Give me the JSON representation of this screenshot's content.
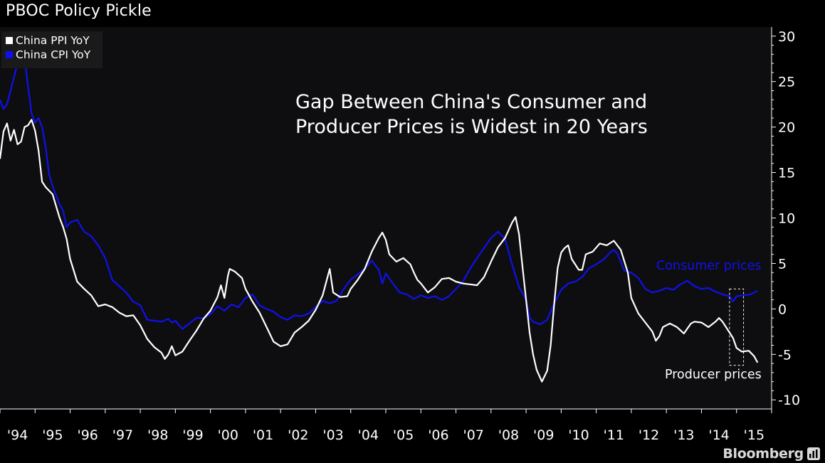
{
  "title": "PBOC Policy Pickle",
  "brand": "Bloomberg",
  "colors": {
    "background": "#000000",
    "plot_background": "#0e0e10",
    "ppi": "#ffffff",
    "cpi": "#1010ee",
    "axis": "#ffffff",
    "brand": "#d9d9d9"
  },
  "chart_data": {
    "type": "line",
    "headline": [
      "Gap Between China's Consumer and",
      "Producer Prices is Widest in 20 Years"
    ],
    "ylim": [
      -11,
      31
    ],
    "yticks": [
      30,
      25,
      20,
      15,
      10,
      5,
      0,
      -5,
      -10
    ],
    "ytick_labels": [
      "30",
      "25",
      "20",
      "15",
      "10",
      "5",
      "0",
      "-5",
      "-10"
    ],
    "xlim": [
      1994.0,
      2016.0
    ],
    "xtick_labels": [
      "'94",
      "'95",
      "'96",
      "'97",
      "'98",
      "'99",
      "'00",
      "'01",
      "'02",
      "'03",
      "'04",
      "'05",
      "'06",
      "'07",
      "'08",
      "'09",
      "'10",
      "'11",
      "'12",
      "'13",
      "'14",
      "'15"
    ],
    "grid": false,
    "legend_position": "top-left",
    "legend": [
      {
        "label": "China PPI YoY",
        "color": "#ffffff"
      },
      {
        "label": "China CPI YoY",
        "color": "#1010ee"
      }
    ],
    "annotations": [
      {
        "text": "Consumer prices",
        "color": "#1010ee",
        "x": 2014.5,
        "y": 4.5
      },
      {
        "text": "Producer prices",
        "color": "#ffffff",
        "x": 2014.1,
        "y": -8.2
      }
    ],
    "highlight_box": {
      "x": [
        2014.8,
        2015.2
      ],
      "y": [
        -6.2,
        2.2
      ]
    },
    "series": [
      {
        "name": "China PPI YoY",
        "color": "#ffffff",
        "points": [
          [
            1994.0,
            16.5
          ],
          [
            1994.1,
            19.5
          ],
          [
            1994.2,
            20.4
          ],
          [
            1994.3,
            18.5
          ],
          [
            1994.4,
            19.7
          ],
          [
            1994.5,
            18.1
          ],
          [
            1994.6,
            18.4
          ],
          [
            1994.7,
            20.0
          ],
          [
            1994.8,
            20.2
          ],
          [
            1994.9,
            20.8
          ],
          [
            1995.0,
            19.6
          ],
          [
            1995.1,
            17.4
          ],
          [
            1995.2,
            14.0
          ],
          [
            1995.3,
            13.4
          ],
          [
            1995.5,
            12.6
          ],
          [
            1995.7,
            10.0
          ],
          [
            1995.8,
            9.0
          ],
          [
            1995.9,
            7.7
          ],
          [
            1996.0,
            5.5
          ],
          [
            1996.2,
            3.0
          ],
          [
            1996.4,
            2.2
          ],
          [
            1996.6,
            1.5
          ],
          [
            1996.8,
            0.3
          ],
          [
            1997.0,
            0.5
          ],
          [
            1997.2,
            0.2
          ],
          [
            1997.4,
            -0.4
          ],
          [
            1997.6,
            -0.8
          ],
          [
            1997.8,
            -0.7
          ],
          [
            1998.0,
            -1.8
          ],
          [
            1998.2,
            -3.3
          ],
          [
            1998.4,
            -4.2
          ],
          [
            1998.6,
            -4.8
          ],
          [
            1998.7,
            -5.5
          ],
          [
            1998.8,
            -5.0
          ],
          [
            1998.9,
            -4.1
          ],
          [
            1999.0,
            -5.1
          ],
          [
            1999.2,
            -4.7
          ],
          [
            1999.4,
            -3.5
          ],
          [
            1999.6,
            -2.4
          ],
          [
            1999.8,
            -1.1
          ],
          [
            2000.0,
            -0.2
          ],
          [
            2000.2,
            1.3
          ],
          [
            2000.3,
            2.6
          ],
          [
            2000.4,
            1.2
          ],
          [
            2000.5,
            3.7
          ],
          [
            2000.55,
            4.4
          ],
          [
            2000.7,
            4.1
          ],
          [
            2000.9,
            3.4
          ],
          [
            2001.0,
            2.2
          ],
          [
            2001.2,
            0.8
          ],
          [
            2001.4,
            -0.4
          ],
          [
            2001.6,
            -2.0
          ],
          [
            2001.8,
            -3.6
          ],
          [
            2002.0,
            -4.1
          ],
          [
            2002.2,
            -3.9
          ],
          [
            2002.4,
            -2.6
          ],
          [
            2002.6,
            -2.0
          ],
          [
            2002.8,
            -1.3
          ],
          [
            2003.0,
            -0.1
          ],
          [
            2003.2,
            1.5
          ],
          [
            2003.4,
            4.4
          ],
          [
            2003.5,
            1.8
          ],
          [
            2003.7,
            1.3
          ],
          [
            2003.9,
            1.4
          ],
          [
            2004.0,
            2.2
          ],
          [
            2004.2,
            3.2
          ],
          [
            2004.4,
            4.4
          ],
          [
            2004.6,
            6.3
          ],
          [
            2004.8,
            7.8
          ],
          [
            2004.9,
            8.4
          ],
          [
            2005.0,
            7.6
          ],
          [
            2005.1,
            6.0
          ],
          [
            2005.3,
            5.2
          ],
          [
            2005.5,
            5.6
          ],
          [
            2005.7,
            4.9
          ],
          [
            2005.8,
            4.0
          ],
          [
            2005.9,
            3.2
          ],
          [
            2006.0,
            2.8
          ],
          [
            2006.2,
            1.8
          ],
          [
            2006.4,
            2.4
          ],
          [
            2006.6,
            3.3
          ],
          [
            2006.8,
            3.4
          ],
          [
            2007.0,
            3.0
          ],
          [
            2007.2,
            2.8
          ],
          [
            2007.4,
            2.7
          ],
          [
            2007.6,
            2.6
          ],
          [
            2007.8,
            3.5
          ],
          [
            2008.0,
            5.2
          ],
          [
            2008.2,
            6.8
          ],
          [
            2008.4,
            7.8
          ],
          [
            2008.6,
            9.5
          ],
          [
            2008.7,
            10.1
          ],
          [
            2008.8,
            8.2
          ],
          [
            2008.9,
            4.5
          ],
          [
            2009.0,
            1.0
          ],
          [
            2009.1,
            -2.6
          ],
          [
            2009.2,
            -5.0
          ],
          [
            2009.3,
            -6.7
          ],
          [
            2009.45,
            -8.0
          ],
          [
            2009.6,
            -6.8
          ],
          [
            2009.7,
            -4.0
          ],
          [
            2009.8,
            0.5
          ],
          [
            2009.9,
            4.5
          ],
          [
            2010.0,
            6.2
          ],
          [
            2010.1,
            6.7
          ],
          [
            2010.2,
            7.0
          ],
          [
            2010.3,
            5.5
          ],
          [
            2010.5,
            4.3
          ],
          [
            2010.6,
            4.3
          ],
          [
            2010.7,
            6.0
          ],
          [
            2010.9,
            6.3
          ],
          [
            2011.1,
            7.2
          ],
          [
            2011.3,
            7.0
          ],
          [
            2011.5,
            7.5
          ],
          [
            2011.7,
            6.5
          ],
          [
            2011.9,
            4.0
          ],
          [
            2012.0,
            1.2
          ],
          [
            2012.2,
            -0.5
          ],
          [
            2012.4,
            -1.5
          ],
          [
            2012.6,
            -2.5
          ],
          [
            2012.7,
            -3.5
          ],
          [
            2012.8,
            -3.0
          ],
          [
            2012.9,
            -2.0
          ],
          [
            2013.1,
            -1.6
          ],
          [
            2013.3,
            -2.0
          ],
          [
            2013.5,
            -2.7
          ],
          [
            2013.7,
            -1.6
          ],
          [
            2013.8,
            -1.4
          ],
          [
            2014.0,
            -1.5
          ],
          [
            2014.2,
            -2.0
          ],
          [
            2014.4,
            -1.4
          ],
          [
            2014.5,
            -1.0
          ],
          [
            2014.6,
            -1.4
          ],
          [
            2014.8,
            -2.6
          ],
          [
            2014.9,
            -3.2
          ],
          [
            2015.0,
            -4.3
          ],
          [
            2015.15,
            -4.7
          ],
          [
            2015.35,
            -4.6
          ],
          [
            2015.5,
            -5.2
          ],
          [
            2015.6,
            -5.9
          ]
        ]
      },
      {
        "name": "China CPI YoY",
        "color": "#1010ee",
        "points": [
          [
            1994.0,
            23.0
          ],
          [
            1994.1,
            22.0
          ],
          [
            1994.2,
            22.5
          ],
          [
            1994.3,
            24.0
          ],
          [
            1994.4,
            25.5
          ],
          [
            1994.5,
            27.0
          ],
          [
            1994.6,
            28.0
          ],
          [
            1994.7,
            27.5
          ],
          [
            1994.8,
            24.5
          ],
          [
            1994.9,
            21.5
          ],
          [
            1995.0,
            20.5
          ],
          [
            1995.1,
            21.0
          ],
          [
            1995.2,
            20.0
          ],
          [
            1995.3,
            17.8
          ],
          [
            1995.4,
            14.8
          ],
          [
            1995.5,
            13.5
          ],
          [
            1995.7,
            11.5
          ],
          [
            1995.8,
            10.8
          ],
          [
            1995.9,
            9.0
          ],
          [
            1996.0,
            9.5
          ],
          [
            1996.2,
            9.8
          ],
          [
            1996.4,
            8.5
          ],
          [
            1996.6,
            8.0
          ],
          [
            1996.8,
            7.0
          ],
          [
            1997.0,
            5.6
          ],
          [
            1997.2,
            3.2
          ],
          [
            1997.4,
            2.5
          ],
          [
            1997.6,
            1.8
          ],
          [
            1997.8,
            0.8
          ],
          [
            1998.0,
            0.4
          ],
          [
            1998.2,
            -1.2
          ],
          [
            1998.4,
            -1.3
          ],
          [
            1998.6,
            -1.4
          ],
          [
            1998.8,
            -1.1
          ],
          [
            1998.9,
            -1.5
          ],
          [
            1999.0,
            -1.3
          ],
          [
            1999.2,
            -2.2
          ],
          [
            1999.4,
            -1.6
          ],
          [
            1999.6,
            -1.0
          ],
          [
            1999.8,
            -1.0
          ],
          [
            2000.0,
            -0.6
          ],
          [
            2000.2,
            0.3
          ],
          [
            2000.4,
            -0.2
          ],
          [
            2000.6,
            0.5
          ],
          [
            2000.8,
            0.2
          ],
          [
            2001.0,
            1.2
          ],
          [
            2001.2,
            1.6
          ],
          [
            2001.4,
            0.4
          ],
          [
            2001.6,
            0.0
          ],
          [
            2001.8,
            -0.3
          ],
          [
            2002.0,
            -0.9
          ],
          [
            2002.2,
            -1.2
          ],
          [
            2002.4,
            -0.7
          ],
          [
            2002.6,
            -0.8
          ],
          [
            2002.8,
            -0.5
          ],
          [
            2003.0,
            0.2
          ],
          [
            2003.2,
            0.9
          ],
          [
            2003.4,
            0.6
          ],
          [
            2003.6,
            0.9
          ],
          [
            2003.8,
            2.2
          ],
          [
            2004.0,
            3.2
          ],
          [
            2004.2,
            3.8
          ],
          [
            2004.4,
            4.4
          ],
          [
            2004.6,
            5.3
          ],
          [
            2004.8,
            4.3
          ],
          [
            2004.9,
            2.8
          ],
          [
            2005.0,
            3.9
          ],
          [
            2005.2,
            2.8
          ],
          [
            2005.4,
            1.8
          ],
          [
            2005.6,
            1.6
          ],
          [
            2005.8,
            1.1
          ],
          [
            2006.0,
            1.5
          ],
          [
            2006.2,
            1.2
          ],
          [
            2006.4,
            1.4
          ],
          [
            2006.6,
            1.0
          ],
          [
            2006.8,
            1.4
          ],
          [
            2007.0,
            2.2
          ],
          [
            2007.2,
            3.0
          ],
          [
            2007.4,
            4.4
          ],
          [
            2007.6,
            5.6
          ],
          [
            2007.8,
            6.7
          ],
          [
            2008.0,
            7.8
          ],
          [
            2008.2,
            8.5
          ],
          [
            2008.4,
            7.7
          ],
          [
            2008.5,
            6.3
          ],
          [
            2008.6,
            4.9
          ],
          [
            2008.8,
            2.4
          ],
          [
            2009.0,
            1.0
          ],
          [
            2009.1,
            -1.0
          ],
          [
            2009.2,
            -1.4
          ],
          [
            2009.4,
            -1.7
          ],
          [
            2009.6,
            -1.2
          ],
          [
            2009.8,
            0.6
          ],
          [
            2010.0,
            2.1
          ],
          [
            2010.2,
            2.8
          ],
          [
            2010.4,
            3.0
          ],
          [
            2010.6,
            3.5
          ],
          [
            2010.8,
            4.5
          ],
          [
            2011.0,
            4.9
          ],
          [
            2011.2,
            5.4
          ],
          [
            2011.4,
            6.2
          ],
          [
            2011.5,
            6.5
          ],
          [
            2011.6,
            6.1
          ],
          [
            2011.8,
            4.2
          ],
          [
            2012.0,
            4.0
          ],
          [
            2012.2,
            3.4
          ],
          [
            2012.4,
            2.2
          ],
          [
            2012.6,
            1.8
          ],
          [
            2012.8,
            2.0
          ],
          [
            2013.0,
            2.3
          ],
          [
            2013.2,
            2.1
          ],
          [
            2013.4,
            2.7
          ],
          [
            2013.6,
            3.1
          ],
          [
            2013.8,
            2.5
          ],
          [
            2014.0,
            2.2
          ],
          [
            2014.2,
            2.3
          ],
          [
            2014.4,
            1.9
          ],
          [
            2014.6,
            1.6
          ],
          [
            2014.8,
            1.4
          ],
          [
            2014.9,
            0.8
          ],
          [
            2015.0,
            1.4
          ],
          [
            2015.2,
            1.5
          ],
          [
            2015.4,
            1.6
          ],
          [
            2015.6,
            2.0
          ]
        ]
      }
    ]
  }
}
